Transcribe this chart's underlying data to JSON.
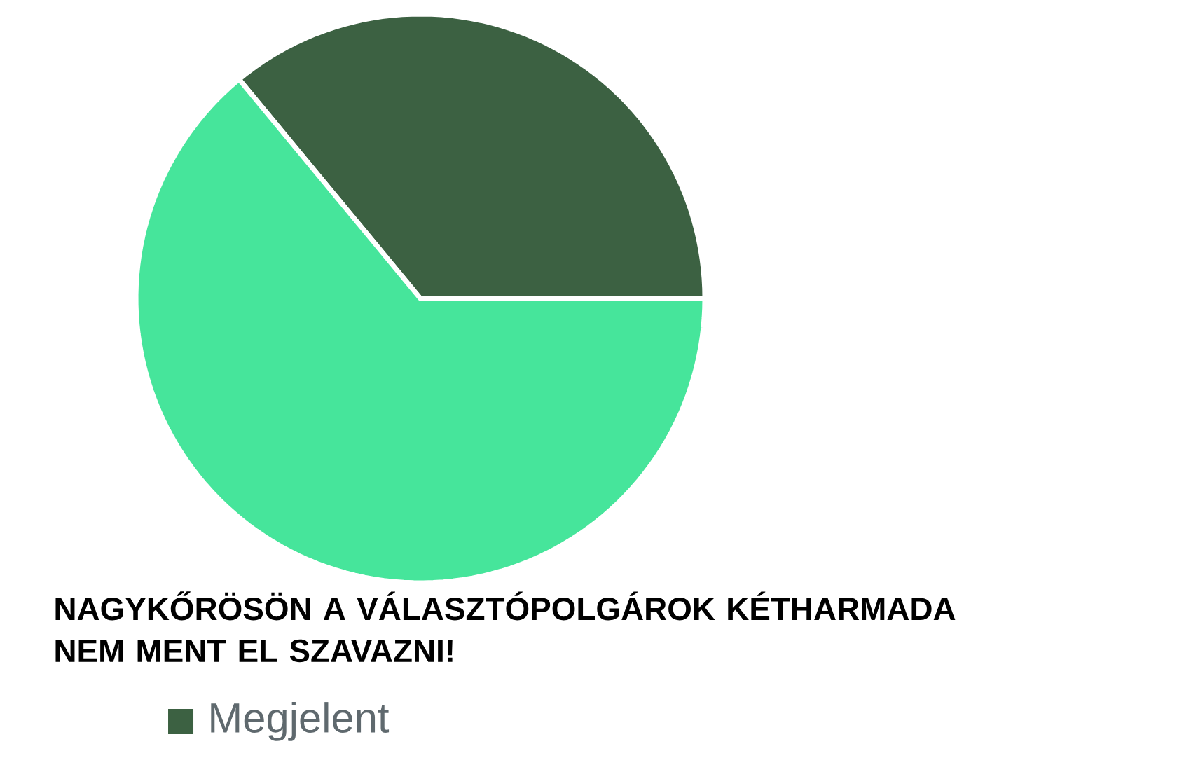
{
  "chart_data": {
    "type": "pie",
    "title": "NAGYKŐRÖSÖN A VÁLASZTÓPOLGÁROK KÉTHARMADA NEM MENT EL SZAVAZNI!",
    "categories": [
      "Megjelent",
      null
    ],
    "values": [
      36,
      64
    ],
    "colors": [
      "#3c6142",
      "#46e59b"
    ],
    "legend": "bottom"
  }
}
